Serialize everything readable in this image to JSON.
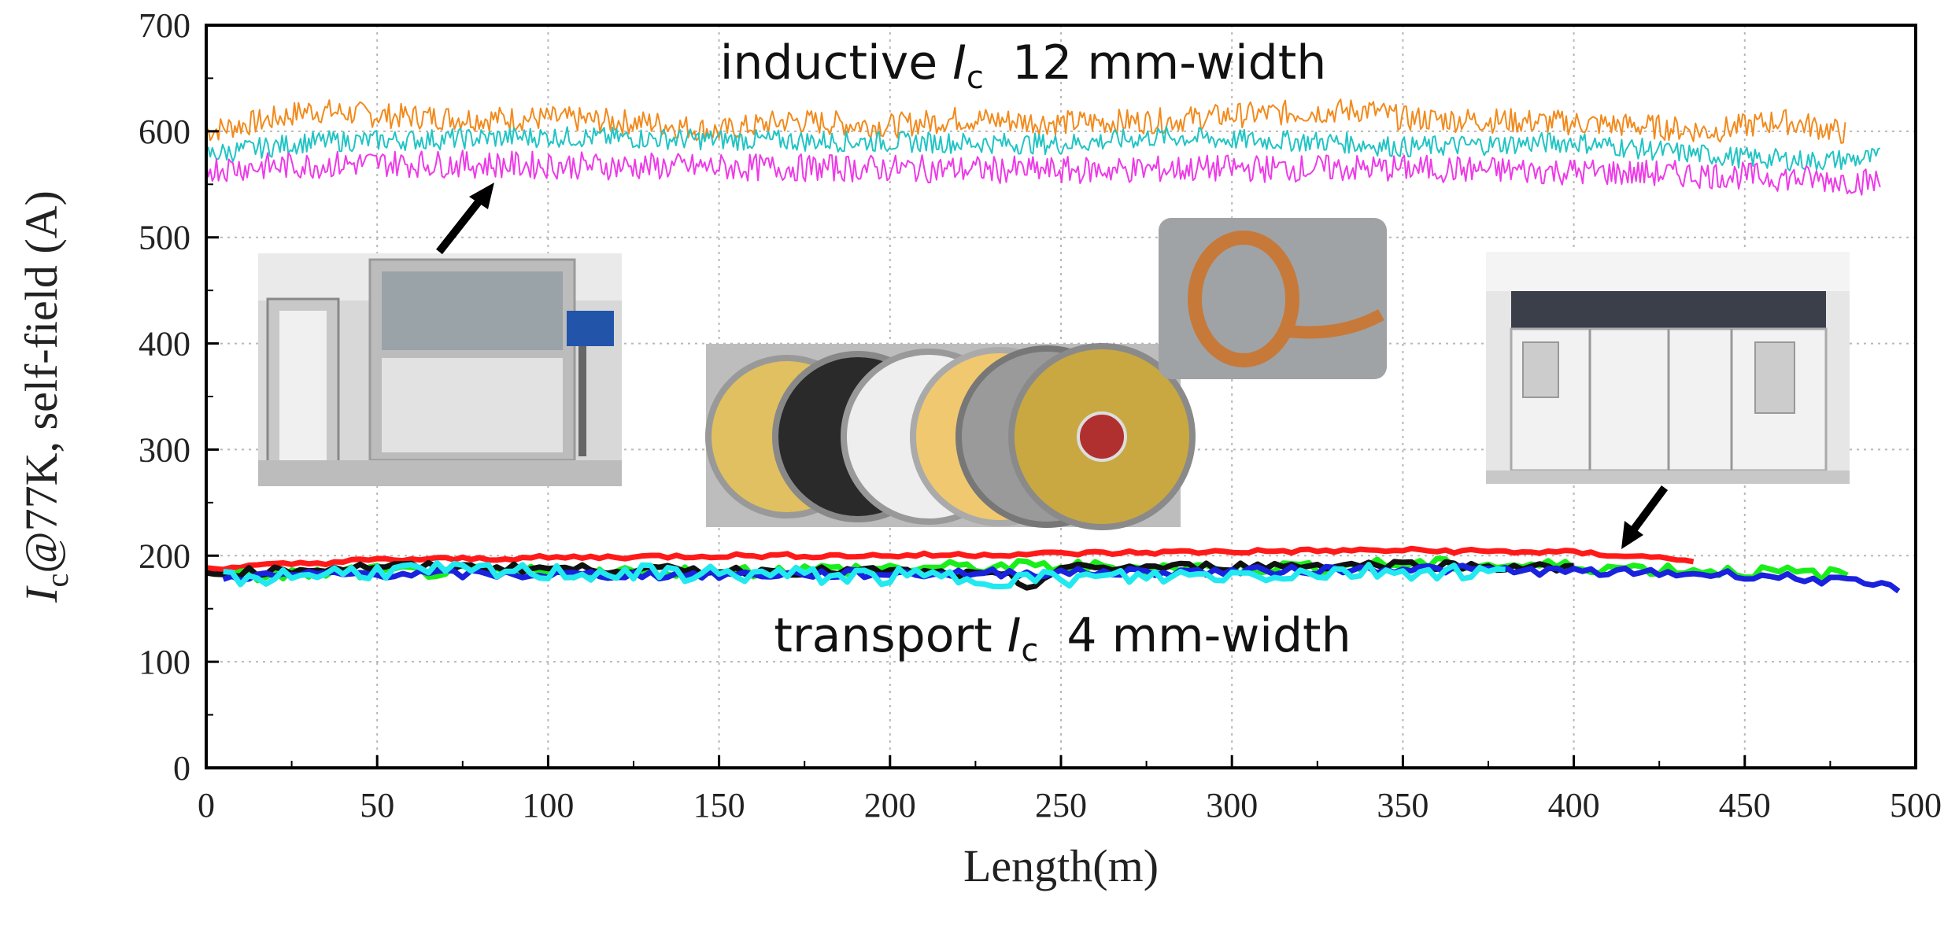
{
  "chart_data": {
    "type": "line",
    "xlabel": "Length(m)",
    "ylabel_main": "I",
    "ylabel_sub": "c",
    "ylabel_rest": "@77K, self-field (A)",
    "xlim": [
      0,
      500
    ],
    "ylim": [
      0,
      700
    ],
    "xticks": [
      0,
      50,
      100,
      150,
      200,
      250,
      300,
      350,
      400,
      450,
      500
    ],
    "yticks": [
      0,
      100,
      200,
      300,
      400,
      500,
      600,
      700
    ],
    "grid": true,
    "annotations": {
      "top": {
        "prefix": "inductive ",
        "italic": "I",
        "sub": "c",
        "suffix": "12 mm-width"
      },
      "bottom": {
        "prefix": "transport ",
        "italic": "I",
        "sub": "c",
        "suffix": "4 mm-width"
      }
    },
    "series": [
      {
        "color": "#f28a1c",
        "noise": 12,
        "x": [
          0,
          20,
          30,
          50,
          80,
          100,
          130,
          150,
          170,
          200,
          220,
          250,
          280,
          300,
          320,
          340,
          350,
          380,
          400,
          420,
          440,
          460,
          470,
          480
        ],
        "values": [
          600,
          612,
          620,
          615,
          612,
          612,
          608,
          600,
          610,
          605,
          612,
          608,
          610,
          615,
          618,
          620,
          612,
          610,
          608,
          605,
          600,
          610,
          605,
          598
        ]
      },
      {
        "color": "#22c4c4",
        "noise": 10,
        "x": [
          0,
          30,
          60,
          100,
          150,
          200,
          250,
          280,
          300,
          330,
          350,
          380,
          400,
          430,
          450,
          470,
          490
        ],
        "values": [
          578,
          590,
          592,
          595,
          592,
          590,
          588,
          595,
          592,
          590,
          585,
          588,
          590,
          580,
          575,
          572,
          575
        ]
      },
      {
        "color": "#ee3ae8",
        "noise": 13,
        "x": [
          0,
          50,
          100,
          150,
          200,
          250,
          300,
          350,
          400,
          450,
          490
        ],
        "values": [
          565,
          570,
          568,
          566,
          565,
          563,
          565,
          565,
          562,
          558,
          552
        ]
      }
    ],
    "series_transport": [
      {
        "color": "#ff1a1a",
        "noise": 2,
        "x": [
          0,
          50,
          100,
          150,
          200,
          250,
          300,
          350,
          400,
          435
        ],
        "values": [
          188,
          196,
          198,
          200,
          200,
          202,
          204,
          205,
          203,
          196
        ]
      },
      {
        "color": "#1aee1a",
        "noise": 6,
        "x": [
          5,
          50,
          100,
          150,
          200,
          250,
          300,
          350,
          400,
          450,
          480
        ],
        "values": [
          180,
          185,
          184,
          185,
          188,
          190,
          188,
          192,
          190,
          185,
          182
        ]
      },
      {
        "color": "#111111",
        "noise": 4,
        "x": [
          0,
          50,
          100,
          150,
          200,
          235,
          240,
          250,
          300,
          350,
          400
        ],
        "values": [
          183,
          190,
          188,
          186,
          185,
          180,
          170,
          188,
          190,
          192,
          188
        ]
      },
      {
        "color": "#1a22dd",
        "noise": 4,
        "x": [
          5,
          50,
          100,
          150,
          200,
          250,
          300,
          350,
          400,
          450,
          470,
          495
        ],
        "values": [
          180,
          183,
          182,
          182,
          183,
          184,
          185,
          188,
          185,
          182,
          178,
          170
        ]
      },
      {
        "color": "#22e8f0",
        "noise": 8,
        "x": [
          5,
          50,
          100,
          150,
          200,
          250,
          300,
          350,
          380
        ],
        "values": [
          178,
          186,
          184,
          183,
          180,
          178,
          182,
          186,
          184
        ]
      }
    ],
    "inset_photos": [
      {
        "name": "inductive-measurement-machine-photo"
      },
      {
        "name": "tape-spools-photo"
      },
      {
        "name": "copper-tape-roll-photo"
      },
      {
        "name": "transport-measurement-cabinet-photo"
      }
    ]
  }
}
